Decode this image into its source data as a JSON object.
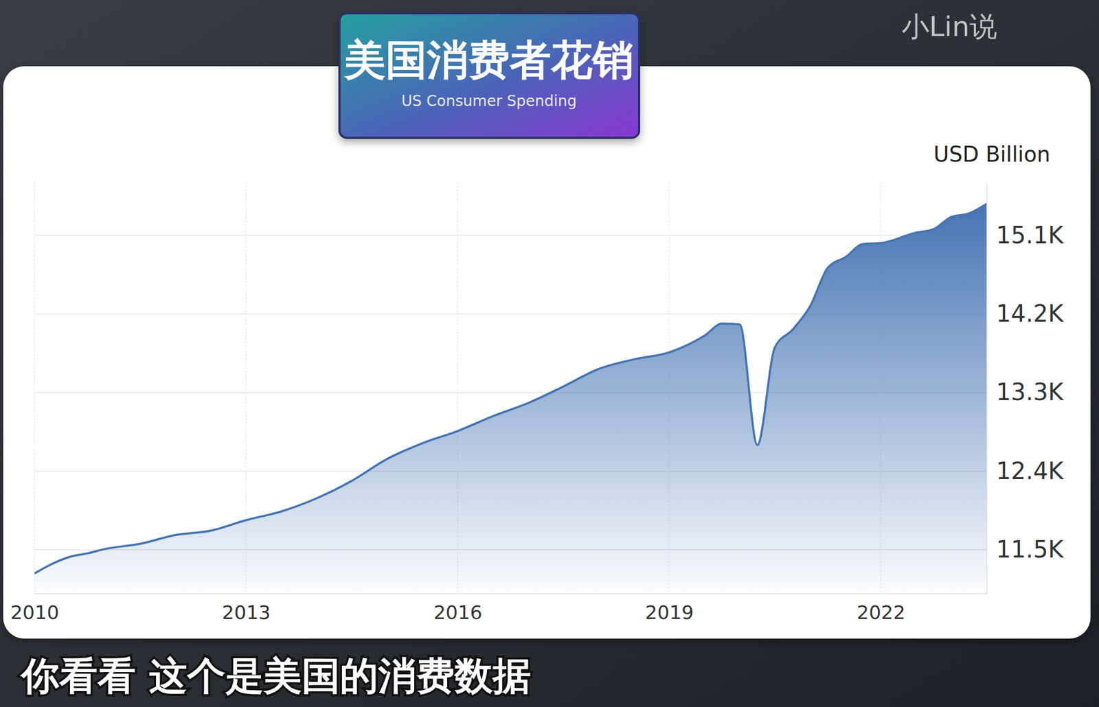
{
  "chart_data": {
    "type": "area",
    "title": "美国消费者花销",
    "subtitle": "US Consumer Spending",
    "y_label": "USD Billion",
    "annotations": [
      "小Lin说",
      "你看看 这个是美国的消费数据"
    ],
    "x": [
      2010,
      2010.25,
      2010.5,
      2010.75,
      2011,
      2011.5,
      2012,
      2012.5,
      2013,
      2013.5,
      2014,
      2014.5,
      2015,
      2015.5,
      2016,
      2016.5,
      2017,
      2017.5,
      2018,
      2018.5,
      2019,
      2019.5,
      2019.75,
      2020,
      2020.25,
      2020.5,
      2020.75,
      2021,
      2021.25,
      2021.5,
      2021.75,
      2022,
      2022.5,
      2022.75,
      2023,
      2023.25,
      2023.5
    ],
    "values": [
      11230,
      11340,
      11420,
      11460,
      11510,
      11570,
      11670,
      11720,
      11840,
      11940,
      12090,
      12290,
      12540,
      12720,
      12860,
      13030,
      13180,
      13370,
      13570,
      13680,
      13760,
      13950,
      14090,
      14080,
      12700,
      13820,
      14020,
      14290,
      14730,
      14850,
      15000,
      15010,
      15130,
      15170,
      15310,
      15350,
      15460
    ],
    "color": "#4574b3",
    "xlim": [
      2010,
      2023.5
    ],
    "xticks": [
      2010,
      2013,
      2016,
      2019,
      2022
    ],
    "ylim": [
      11000,
      15700
    ],
    "yticks": [
      {
        "value": 11500,
        "label": "11.5K"
      },
      {
        "value": 12400,
        "label": "12.4K"
      },
      {
        "value": 13300,
        "label": "13.3K"
      },
      {
        "value": 14200,
        "label": "14.2K"
      },
      {
        "value": 15100,
        "label": "15.1K"
      }
    ],
    "grid": true
  }
}
